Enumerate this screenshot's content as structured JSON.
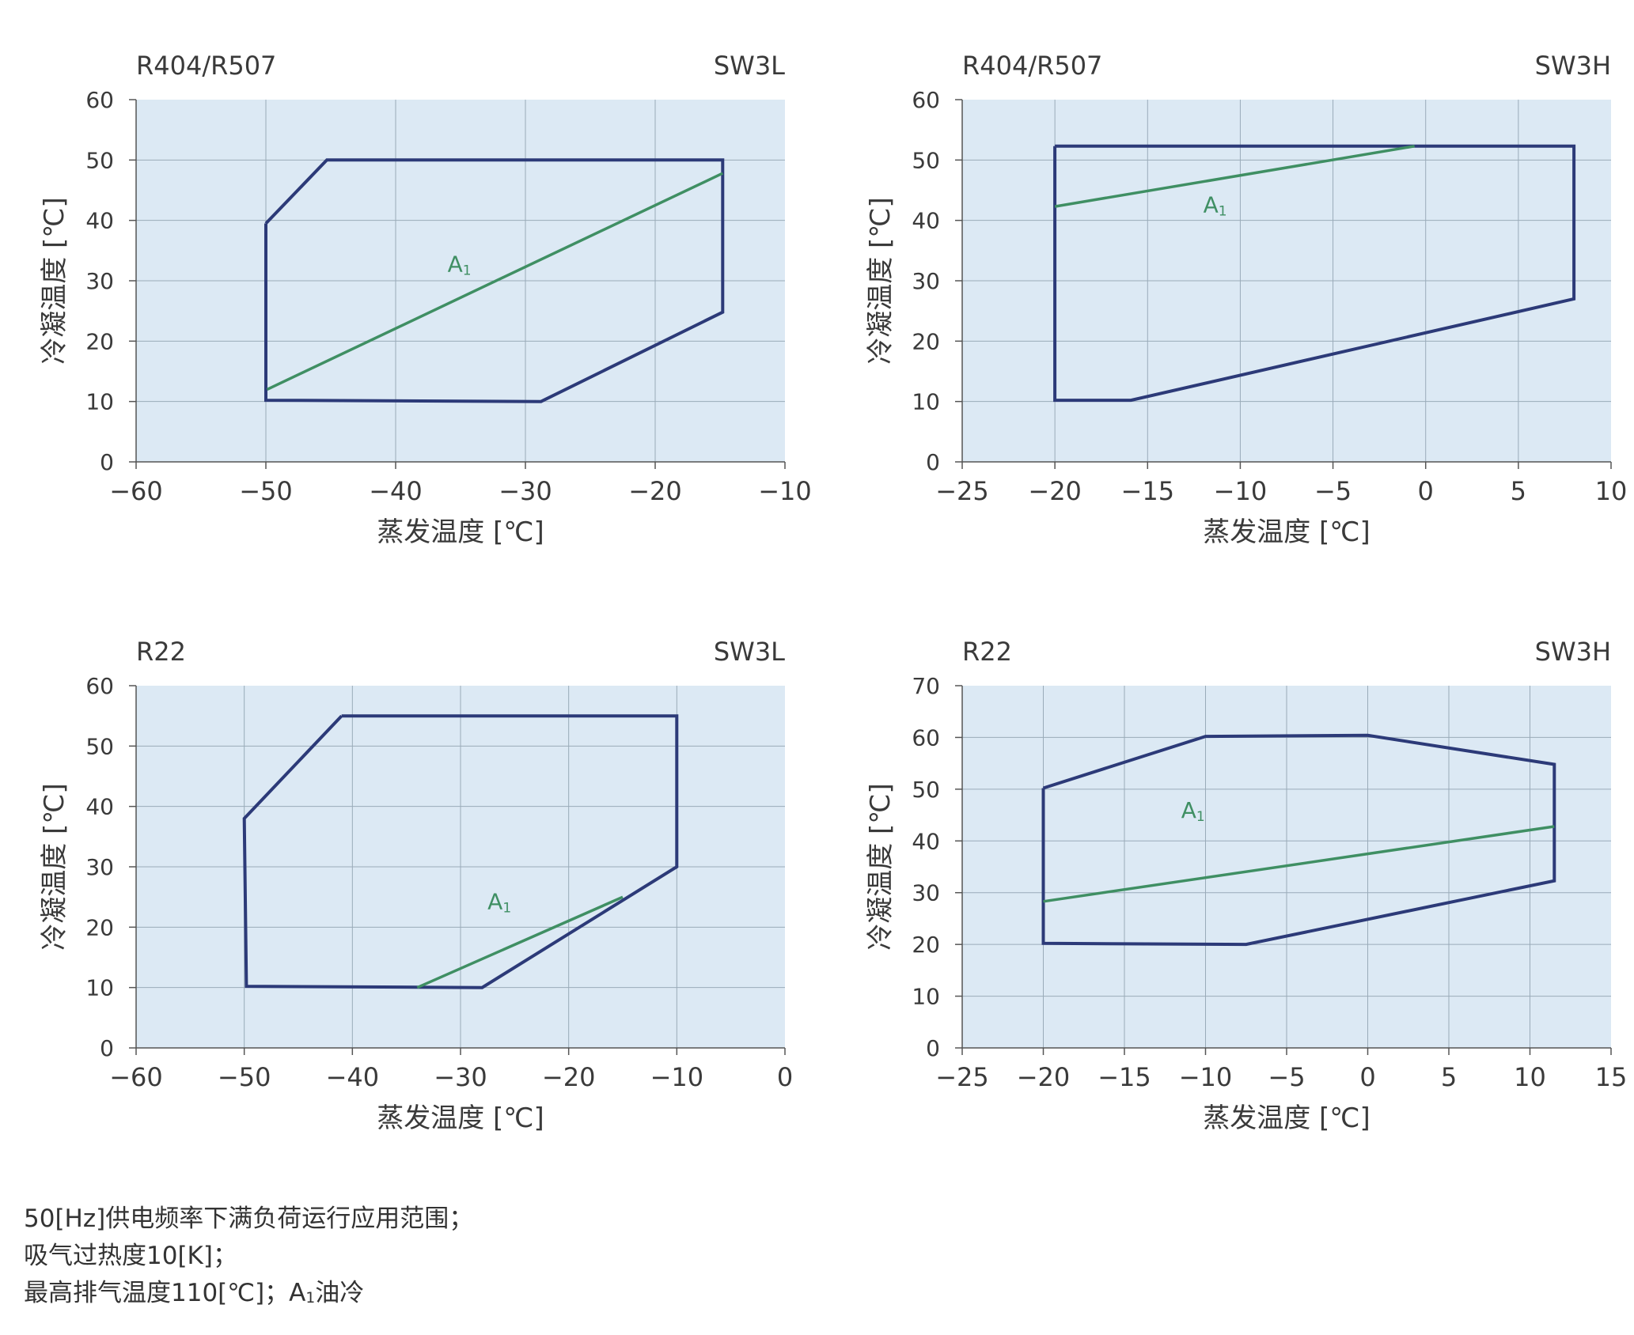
{
  "colors": {
    "plot_bg": "#dce9f4",
    "grid": "#9aabb9",
    "envelope": "#2c3a78",
    "a1_line": "#3f8f63",
    "axis": "#555555"
  },
  "chart_data": [
    {
      "type": "line",
      "refrigerant": "R404/R507",
      "model": "SW3L",
      "xlabel": "蒸发温度 [℃]",
      "ylabel": "冷凝温度 [℃]",
      "xlim": [
        -60,
        -10
      ],
      "ylim": [
        0,
        60
      ],
      "xticks": [
        -60,
        -50,
        -40,
        -30,
        -20,
        -10
      ],
      "yticks": [
        0,
        10,
        20,
        30,
        40,
        50,
        60
      ],
      "series": [
        {
          "role": "envelope",
          "x": [
            -50,
            -45.3,
            -14.8,
            -14.8,
            -28.8,
            -50,
            -50
          ],
          "y": [
            39.5,
            50,
            50,
            24.8,
            10,
            10.2,
            39.5
          ]
        },
        {
          "role": "a1",
          "x": [
            -49.9,
            -14.8
          ],
          "y": [
            12,
            47.8
          ]
        }
      ],
      "annotation": {
        "text": "A",
        "sub": "1",
        "x": -36,
        "y": 31.5
      }
    },
    {
      "type": "line",
      "refrigerant": "R404/R507",
      "model": "SW3H",
      "xlabel": "蒸发温度 [℃]",
      "ylabel": "冷凝温度 [℃]",
      "xlim": [
        -25,
        10
      ],
      "ylim": [
        0,
        60
      ],
      "xticks": [
        -25,
        -20,
        -15,
        -10,
        -5,
        0,
        5,
        10
      ],
      "yticks": [
        0,
        10,
        20,
        30,
        40,
        50,
        60
      ],
      "series": [
        {
          "role": "envelope",
          "x": [
            -20,
            8,
            8,
            -15.9,
            -20,
            -20
          ],
          "y": [
            52.3,
            52.3,
            27,
            10.2,
            10.2,
            52.3
          ]
        },
        {
          "role": "a1",
          "x": [
            -20,
            -0.6
          ],
          "y": [
            42.3,
            52.3
          ]
        }
      ],
      "annotation": {
        "text": "A",
        "sub": "1",
        "x": -12,
        "y": 41.3
      }
    },
    {
      "type": "line",
      "refrigerant": "R22",
      "model": "SW3L",
      "xlabel": "蒸发温度 [℃]",
      "ylabel": "冷凝温度 [℃]",
      "xlim": [
        -60,
        0
      ],
      "ylim": [
        0,
        60
      ],
      "xticks": [
        -60,
        -50,
        -40,
        -30,
        -20,
        -10,
        0
      ],
      "yticks": [
        0,
        10,
        20,
        30,
        40,
        50,
        60
      ],
      "series": [
        {
          "role": "envelope",
          "x": [
            -41,
            -10,
            -10,
            -28,
            -49.8,
            -50,
            -41
          ],
          "y": [
            55,
            55,
            30,
            10,
            10.2,
            38,
            55
          ]
        },
        {
          "role": "a1",
          "x": [
            -34,
            -15
          ],
          "y": [
            10,
            25
          ]
        }
      ],
      "annotation": {
        "text": "A",
        "sub": "1",
        "x": -27.5,
        "y": 23
      }
    },
    {
      "type": "line",
      "refrigerant": "R22",
      "model": "SW3H",
      "xlabel": "蒸发温度 [℃]",
      "ylabel": "冷凝温度 [℃]",
      "xlim": [
        -25,
        15
      ],
      "ylim": [
        0,
        70
      ],
      "xticks": [
        -25,
        -20,
        -15,
        -10,
        -5,
        0,
        5,
        10,
        15
      ],
      "yticks": [
        0,
        10,
        20,
        30,
        40,
        50,
        60,
        70
      ],
      "series": [
        {
          "role": "envelope",
          "x": [
            -20,
            -10,
            0,
            11.5,
            11.5,
            -7.5,
            -20,
            -20
          ],
          "y": [
            50.2,
            60.2,
            60.4,
            54.8,
            32.3,
            20,
            20.2,
            50.2
          ]
        },
        {
          "role": "a1",
          "x": [
            -20,
            11.5
          ],
          "y": [
            28.3,
            42.8
          ]
        }
      ],
      "annotation": {
        "text": "A",
        "sub": "1",
        "x": -11.5,
        "y": 44.5
      }
    }
  ],
  "notes": {
    "line1": "50[Hz]供电频率下满负荷运行应用范围；",
    "line2": "吸气过热度10[K]；",
    "line3_prefix": "最高排气温度110[℃]；A",
    "line3_sub": "1",
    "line3_suffix": "油冷"
  }
}
